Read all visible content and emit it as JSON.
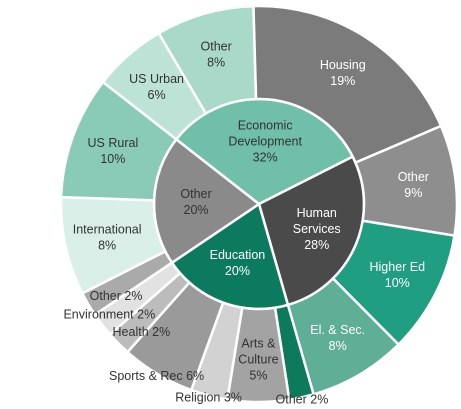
{
  "chart_data": {
    "type": "pie",
    "subtype": "sunburst",
    "inner": [
      {
        "label": "Economic Development",
        "value": 32,
        "color": "#6fbfa9",
        "text_color": "#333333",
        "lines": [
          "Economic",
          "Development",
          "32%"
        ]
      },
      {
        "label": "Human Services",
        "value": 28,
        "color": "#4a4a4a",
        "text_color": "#ffffff",
        "lines": [
          "Human",
          "Services",
          "28%"
        ]
      },
      {
        "label": "Education",
        "value": 20,
        "color": "#0c7a5e",
        "text_color": "#ffffff",
        "lines": [
          "Education",
          "20%"
        ]
      },
      {
        "label": "Other",
        "value": 20,
        "color": "#8a8a8a",
        "text_color": "#333333",
        "lines": [
          "Other",
          "20%"
        ]
      }
    ],
    "outer": [
      {
        "parent": "Economic Development",
        "label": "US Urban",
        "value": 6,
        "color": "#bde3d7",
        "text_color": "#333333",
        "lines": [
          "US Urban",
          "6%"
        ]
      },
      {
        "parent": "Economic Development",
        "label": "Other",
        "value": 8,
        "color": "#a9d9c9",
        "text_color": "#333333",
        "lines": [
          "Other",
          "8%"
        ]
      },
      {
        "parent": "Human Services",
        "label": "Housing",
        "value": 19,
        "color": "#7b7b7b",
        "text_color": "#ffffff",
        "lines": [
          "Housing",
          "19%"
        ]
      },
      {
        "parent": "Human Services",
        "label": "Other",
        "value": 9,
        "color": "#8e8e8e",
        "text_color": "#ffffff",
        "lines": [
          "Other",
          "9%"
        ]
      },
      {
        "parent": "Education",
        "label": "Higher Ed",
        "value": 10,
        "color": "#1f9e82",
        "text_color": "#ffffff",
        "lines": [
          "Higher Ed",
          "10%"
        ]
      },
      {
        "parent": "Education",
        "label": "El. & Sec.",
        "value": 8,
        "color": "#5fae96",
        "text_color": "#ffffff",
        "lines": [
          "El. & Sec.",
          "8%"
        ]
      },
      {
        "parent": "Education",
        "label": "Other",
        "value": 2,
        "color": "#0e7a5c",
        "text_color": "#333333",
        "lines": [
          "Other 2%"
        ]
      },
      {
        "parent": "Other",
        "label": "Arts & Culture",
        "value": 5,
        "color": "#a3a3a3",
        "text_color": "#333333",
        "lines": [
          "Arts &",
          "Culture",
          "5%"
        ]
      },
      {
        "parent": "Other",
        "label": "Religion",
        "value": 3,
        "color": "#d2d2d2",
        "text_color": "#333333",
        "lines": [
          "Religion 3%"
        ]
      },
      {
        "parent": "Other",
        "label": "Sports & Rec",
        "value": 6,
        "color": "#9a9a9a",
        "text_color": "#333333",
        "lines": [
          "Sports & Rec 6%"
        ]
      },
      {
        "parent": "Other",
        "label": "Health",
        "value": 2,
        "color": "#bcbcbc",
        "text_color": "#333333",
        "lines": [
          "Health 2%"
        ]
      },
      {
        "parent": "Other",
        "label": "Environment",
        "value": 2,
        "color": "#e2e2e2",
        "text_color": "#333333",
        "lines": [
          "Environment 2%"
        ]
      },
      {
        "parent": "Other",
        "label": "Other",
        "value": 2,
        "color": "#aaaaaa",
        "text_color": "#333333",
        "lines": [
          "Other 2%"
        ]
      },
      {
        "parent": "Economic Development",
        "label": "International",
        "value": 8,
        "color": "#d9efe7",
        "text_color": "#333333",
        "lines": [
          "International",
          "8%"
        ]
      },
      {
        "parent": "Economic Development",
        "label": "US Rural",
        "value": 10,
        "color": "#8acbb7",
        "text_color": "#333333",
        "lines": [
          "US Rural",
          "10%"
        ]
      }
    ]
  }
}
